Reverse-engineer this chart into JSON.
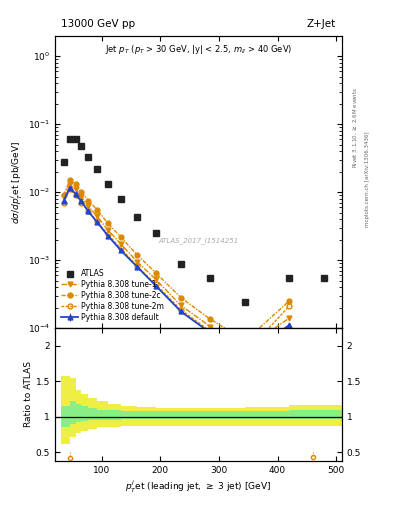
{
  "title_left": "13000 GeV pp",
  "title_right": "Z+Jet",
  "subtitle": "Jet p$_T$ (p$_T$ > 30 GeV, |y| < 2.5, m$_{ll}$ > 40 GeV)",
  "watermark": "ATLAS_2017_I1514251",
  "right_label1": "Rivet 3.1.10, ≥ 2.6M events",
  "right_label2": "mcplots.cern.ch [arXiv:1306.3436]",
  "xlabel": "p$_T^j$et (leading jet, ≥ 3 jet) [GeV]",
  "ylabel": "dσ/dp$_T^j$et [pb/GeV]",
  "ylabel_ratio": "Ratio to ATLAS",
  "atlas_x": [
    35,
    45,
    55,
    65,
    77,
    92,
    110,
    132,
    160,
    192,
    235,
    285,
    345,
    420,
    480
  ],
  "atlas_y": [
    0.028,
    0.06,
    0.06,
    0.048,
    0.033,
    0.022,
    0.013,
    0.008,
    0.0043,
    0.0025,
    0.00088,
    0.00055,
    0.00024,
    0.00055,
    0.00055
  ],
  "pythia_default_x": [
    35,
    45,
    55,
    65,
    77,
    92,
    110,
    132,
    160,
    192,
    235,
    285,
    345,
    420
  ],
  "pythia_default_y": [
    0.0075,
    0.0115,
    0.0095,
    0.0073,
    0.0052,
    0.0036,
    0.0023,
    0.0014,
    0.0008,
    0.00042,
    0.000175,
    8.5e-05,
    4e-05,
    0.00011
  ],
  "pythia_tune1_x": [
    35,
    45,
    55,
    65,
    77,
    92,
    110,
    132,
    160,
    192,
    235,
    285,
    345,
    420
  ],
  "pythia_tune1_y": [
    0.0085,
    0.013,
    0.011,
    0.0085,
    0.0062,
    0.0044,
    0.0028,
    0.00175,
    0.00095,
    0.00052,
    0.000215,
    0.000105,
    5e-05,
    0.00014
  ],
  "pythia_tune2c_x": [
    35,
    45,
    55,
    65,
    77,
    92,
    110,
    132,
    160,
    192,
    235,
    285,
    345,
    420
  ],
  "pythia_tune2c_y": [
    0.009,
    0.015,
    0.013,
    0.01,
    0.0075,
    0.0055,
    0.0035,
    0.0022,
    0.0012,
    0.00065,
    0.00028,
    0.000135,
    6.5e-05,
    0.00025
  ],
  "pythia_tune2m_x": [
    35,
    45,
    55,
    65,
    77,
    92,
    110,
    132,
    160,
    192,
    235,
    285,
    345,
    420
  ],
  "pythia_tune2m_y": [
    0.007,
    0.011,
    0.009,
    0.007,
    0.0052,
    0.0037,
    0.0024,
    0.0015,
    0.00082,
    0.00044,
    0.000185,
    9e-05,
    4.2e-05,
    0.00021
  ],
  "ratio_yellow_x": [
    30,
    45,
    55,
    65,
    77,
    92,
    110,
    132,
    160,
    192,
    235,
    285,
    345,
    420,
    520
  ],
  "ratio_yellow_low": [
    0.62,
    0.72,
    0.77,
    0.8,
    0.83,
    0.85,
    0.86,
    0.87,
    0.87,
    0.87,
    0.87,
    0.87,
    0.87,
    0.87,
    0.87
  ],
  "ratio_yellow_high": [
    1.58,
    1.55,
    1.38,
    1.32,
    1.27,
    1.22,
    1.18,
    1.15,
    1.14,
    1.13,
    1.13,
    1.13,
    1.14,
    1.17,
    1.17
  ],
  "ratio_green_x": [
    30,
    45,
    55,
    65,
    77,
    92,
    110,
    132,
    160,
    192,
    235,
    285,
    345,
    420,
    520
  ],
  "ratio_green_low": [
    0.85,
    0.9,
    0.92,
    0.94,
    0.95,
    0.96,
    0.96,
    0.97,
    0.97,
    0.97,
    0.97,
    0.97,
    0.97,
    0.97,
    0.97
  ],
  "ratio_green_high": [
    1.15,
    1.22,
    1.18,
    1.15,
    1.12,
    1.1,
    1.09,
    1.08,
    1.08,
    1.08,
    1.08,
    1.08,
    1.08,
    1.1,
    1.1
  ],
  "color_atlas": "#222222",
  "color_default": "#2244cc",
  "color_tune": "#dd8800",
  "color_green": "#88ee88",
  "color_yellow": "#eeee44",
  "ylim_main": [
    0.0001,
    2.0
  ],
  "ylim_ratio": [
    0.38,
    2.25
  ],
  "xlim": [
    20,
    510
  ]
}
